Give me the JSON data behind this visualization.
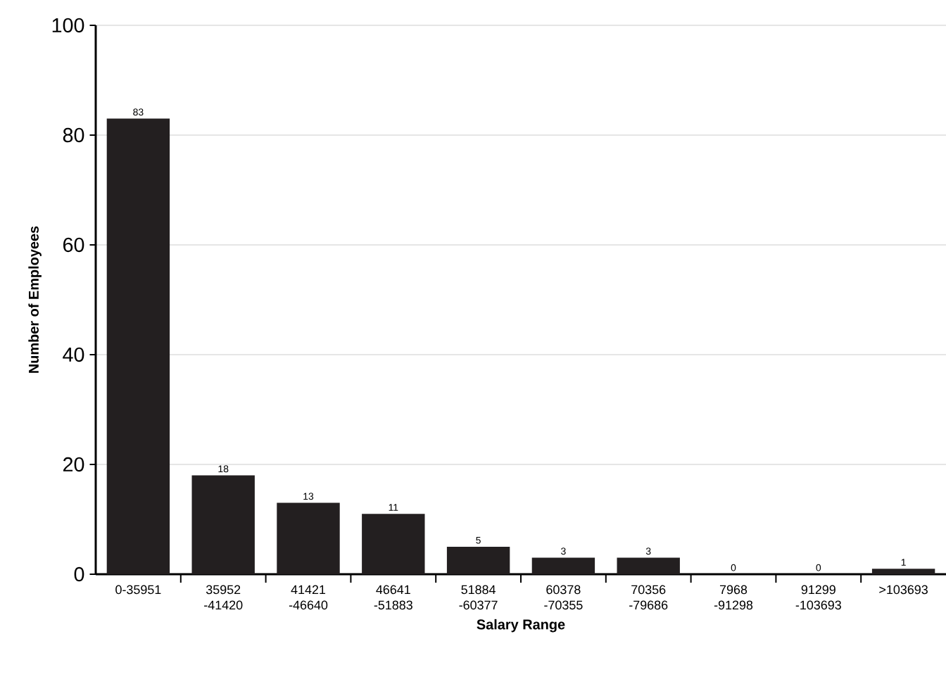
{
  "chart_data": {
    "type": "bar",
    "xlabel": "Salary Range",
    "ylabel": "Number of Employees",
    "categories": [
      "0-35951",
      "35952 -41420",
      "41421 -46640",
      "46641 -51883",
      "51884 -60377",
      "60378 -70355",
      "70356 -79686",
      "7968 -91298",
      "91299 -103693",
      ">103693"
    ],
    "values": [
      83,
      18,
      13,
      11,
      5,
      3,
      3,
      0,
      0,
      1
    ],
    "color": "#231f20",
    "ylim": [
      0,
      100
    ],
    "yticks": [
      0,
      20,
      40,
      60,
      80,
      100
    ],
    "grid": "y",
    "data_labels": true
  }
}
